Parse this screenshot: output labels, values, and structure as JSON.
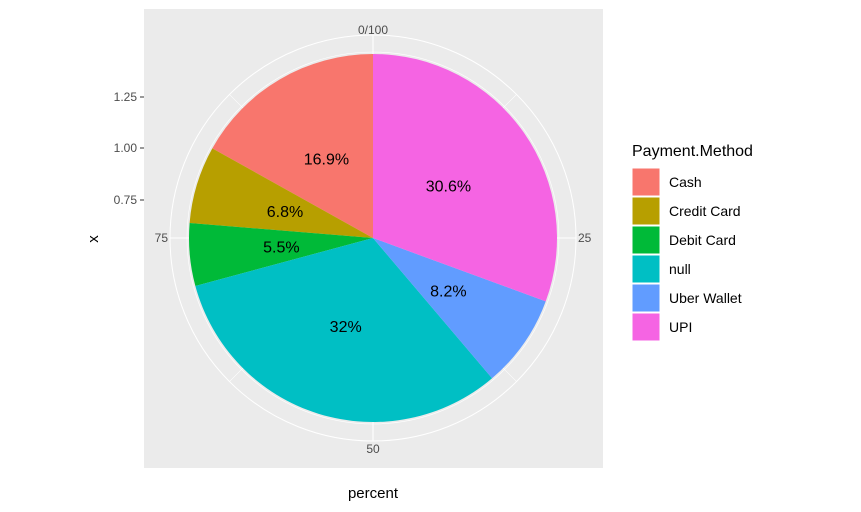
{
  "chart_data": {
    "type": "pie",
    "xlabel": "percent",
    "ylabel": "x",
    "angle_ticks": [
      {
        "value": 0,
        "label": "0/100"
      },
      {
        "value": 25,
        "label": "25"
      },
      {
        "value": 50,
        "label": "50"
      },
      {
        "value": 75,
        "label": "75"
      }
    ],
    "radial_ticks": [
      "0.75",
      "1.00",
      "1.25"
    ],
    "legend": {
      "title": "Payment.Method"
    },
    "slices": [
      {
        "name": "Cash",
        "value": 16.9,
        "label": "16.9%",
        "color": "#F8766D"
      },
      {
        "name": "Credit Card",
        "value": 6.8,
        "label": "6.8%",
        "color": "#B79F00"
      },
      {
        "name": "Debit Card",
        "value": 5.5,
        "label": "5.5%",
        "color": "#00BA38"
      },
      {
        "name": "null",
        "value": 32.0,
        "label": "32%",
        "color": "#00BFC4"
      },
      {
        "name": "Uber Wallet",
        "value": 8.2,
        "label": "8.2%",
        "color": "#619CFF"
      },
      {
        "name": "UPI",
        "value": 30.6,
        "label": "30.6%",
        "color": "#F564E3"
      }
    ],
    "panel_color": "#EBEBEB",
    "grid_color": "#FFFFFF"
  }
}
